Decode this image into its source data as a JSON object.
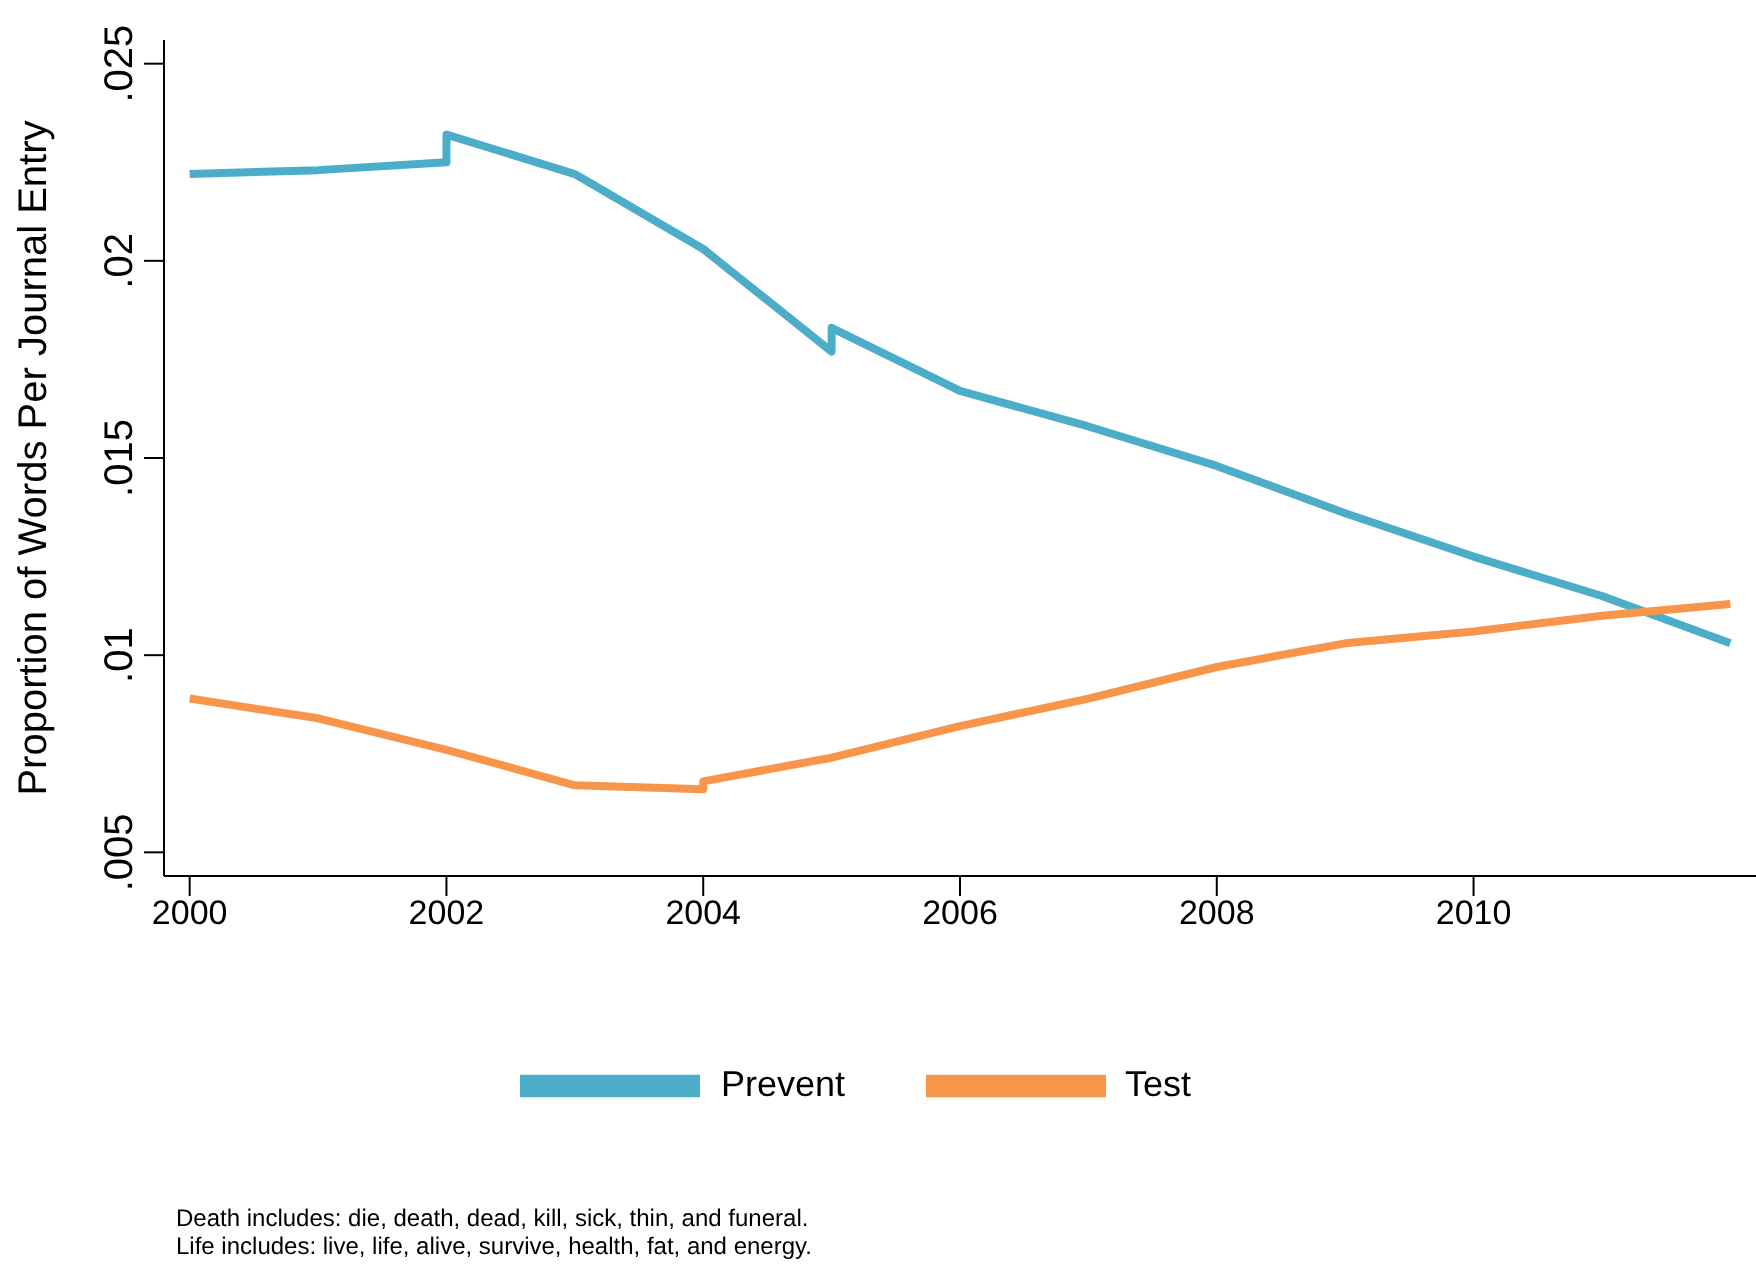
{
  "chart_data": {
    "type": "line",
    "ylabel": "Proportion of Words Per Journal Entry",
    "xlim": [
      1999.8,
      2012.2
    ],
    "xticks": [
      2000,
      2002,
      2004,
      2006,
      2008,
      2010
    ],
    "ylim": [
      0.0044,
      0.0256
    ],
    "yticks": [
      {
        "value": 0.005,
        "label": ".005"
      },
      {
        "value": 0.01,
        "label": ".01"
      },
      {
        "value": 0.015,
        "label": ".015"
      },
      {
        "value": 0.02,
        "label": ".02"
      },
      {
        "value": 0.025,
        "label": ".025"
      }
    ],
    "grid": false,
    "legend": "bottom",
    "marker": "none",
    "line_style": "solid",
    "series": [
      {
        "name": "Prevent",
        "color": "#4badc8",
        "x": [
          2000,
          2001,
          2002,
          2002,
          2003,
          2004,
          2005,
          2005,
          2006,
          2007,
          2008,
          2009,
          2010,
          2011,
          2012
        ],
        "values": [
          0.0222,
          0.0223,
          0.0225,
          0.0232,
          0.0222,
          0.0203,
          0.0177,
          0.0183,
          0.0167,
          0.0158,
          0.0148,
          0.0136,
          0.0125,
          0.0115,
          0.0103
        ]
      },
      {
        "name": "Test",
        "color": "#f7964a",
        "x": [
          2000,
          2001,
          2002,
          2003,
          2004,
          2004,
          2005,
          2006,
          2007,
          2008,
          2009,
          2010,
          2011,
          2012
        ],
        "values": [
          0.0089,
          0.0084,
          0.0076,
          0.0067,
          0.0066,
          0.0068,
          0.0074,
          0.0082,
          0.0089,
          0.0097,
          0.0103,
          0.0106,
          0.011,
          0.0113
        ]
      }
    ],
    "annotations": [
      "Death includes: die, death, dead, kill, sick, thin, and funeral.",
      "Life includes: live, life, alive, survive, health, fat, and energy."
    ]
  }
}
